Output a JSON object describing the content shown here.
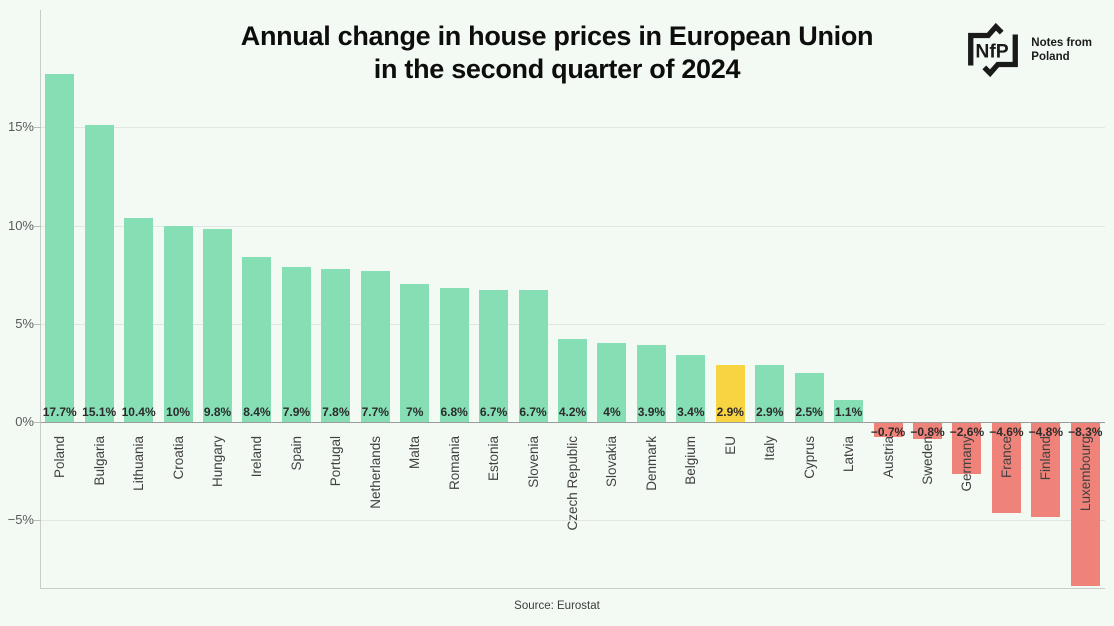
{
  "title": {
    "line1": "Annual change in house prices in European Union",
    "line2": "in the second quarter of 2024"
  },
  "logo": {
    "acronym": "NfP",
    "text_line1": "Notes from",
    "text_line2": "Poland"
  },
  "source": "Source: Eurostat",
  "colors": {
    "background": "#f3faf4",
    "positive_bar": "#85deb4",
    "eu_bar": "#f8d342",
    "negative_bar": "#ef8379",
    "gridline": "#e2e6e2",
    "zero_line": "#9c9c9c",
    "axis_spine": "#c9cdc9",
    "value_label_text": "#2b2b2b",
    "country_label_text": "#414141",
    "tick_label_text": "#5a5a5a"
  },
  "chart_data": {
    "type": "bar",
    "title": "Annual change in house prices in European Union in the second quarter of 2024",
    "xlabel": "",
    "ylabel": "",
    "ylim": [
      -8.5,
      18.5
    ],
    "grid": true,
    "highlight_category": "EU",
    "categories": [
      "Poland",
      "Bulgaria",
      "Lithuania",
      "Croatia",
      "Hungary",
      "Ireland",
      "Spain",
      "Portugal",
      "Netherlands",
      "Malta",
      "Romania",
      "Estonia",
      "Slovenia",
      "Czech Republic",
      "Slovakia",
      "Denmark",
      "Belgium",
      "EU",
      "Italy",
      "Cyprus",
      "Latvia",
      "Austria",
      "Sweden",
      "Germany",
      "France",
      "Finland",
      "Luxembourg"
    ],
    "values": [
      17.7,
      15.1,
      10.4,
      10,
      9.8,
      8.4,
      7.9,
      7.8,
      7.7,
      7,
      6.8,
      6.7,
      6.7,
      4.2,
      4,
      3.9,
      3.4,
      2.9,
      2.9,
      2.5,
      1.1,
      -0.7,
      -0.8,
      -2.6,
      -4.6,
      -4.8,
      -8.3
    ],
    "value_labels": [
      "17.7%",
      "15.1%",
      "10.4%",
      "10%",
      "9.8%",
      "8.4%",
      "7.9%",
      "7.8%",
      "7.7%",
      "7%",
      "6.8%",
      "6.7%",
      "6.7%",
      "4.2%",
      "4%",
      "3.9%",
      "3.4%",
      "2.9%",
      "2.9%",
      "2.5%",
      "1.1%",
      "−0.7%",
      "−0.8%",
      "−2.6%",
      "−4.6%",
      "−4.8%",
      "−8.3%"
    ],
    "yticks": [
      {
        "label": "15%",
        "value": 15
      },
      {
        "label": "10%",
        "value": 10
      },
      {
        "label": "5%",
        "value": 5
      },
      {
        "label": "0%",
        "value": 0
      },
      {
        "label": "−5%",
        "value": -5
      }
    ]
  }
}
